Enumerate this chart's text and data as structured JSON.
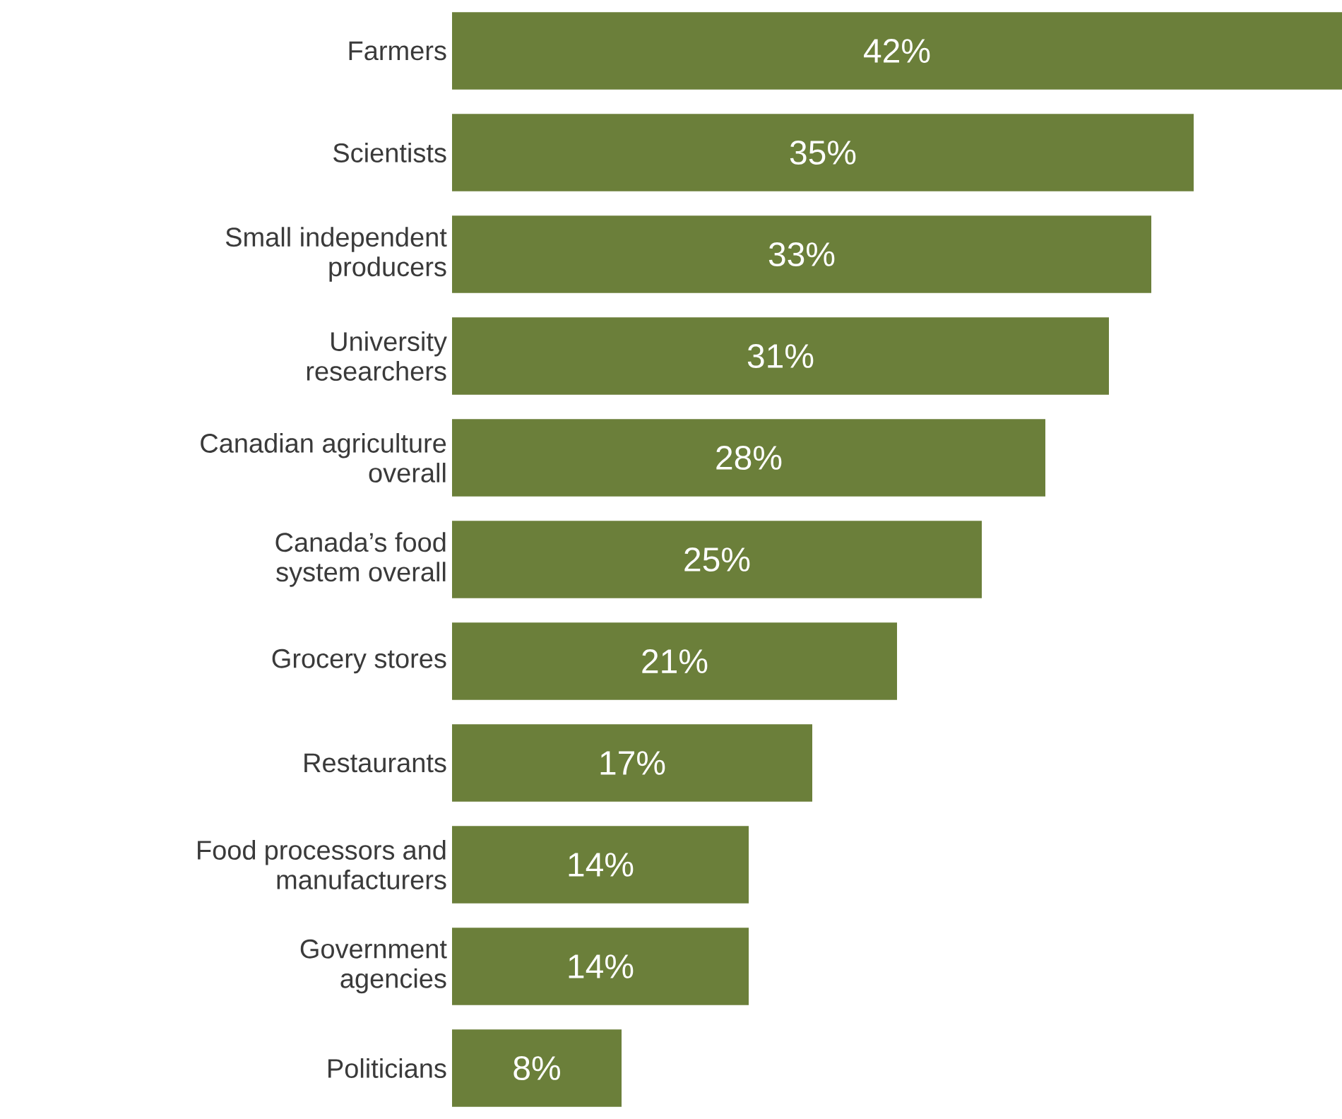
{
  "chart_data": {
    "type": "bar",
    "orientation": "horizontal",
    "categories": [
      "Farmers",
      "Scientists",
      "Small independent producers",
      "University researchers",
      "Canadian agriculture overall",
      "Canada’s food system overall",
      "Grocery stores",
      "Restaurants",
      "Food processors and manufacturers",
      "Government agencies",
      "Politicians"
    ],
    "values": [
      42,
      35,
      33,
      31,
      28,
      25,
      21,
      17,
      14,
      14,
      8
    ],
    "value_labels": [
      "42%",
      "35%",
      "33%",
      "31%",
      "28%",
      "25%",
      "21%",
      "17%",
      "14%",
      "14%",
      "8%"
    ],
    "color": "#6b7f3a",
    "xlim": [
      0,
      42
    ],
    "tick_labels": "y"
  }
}
